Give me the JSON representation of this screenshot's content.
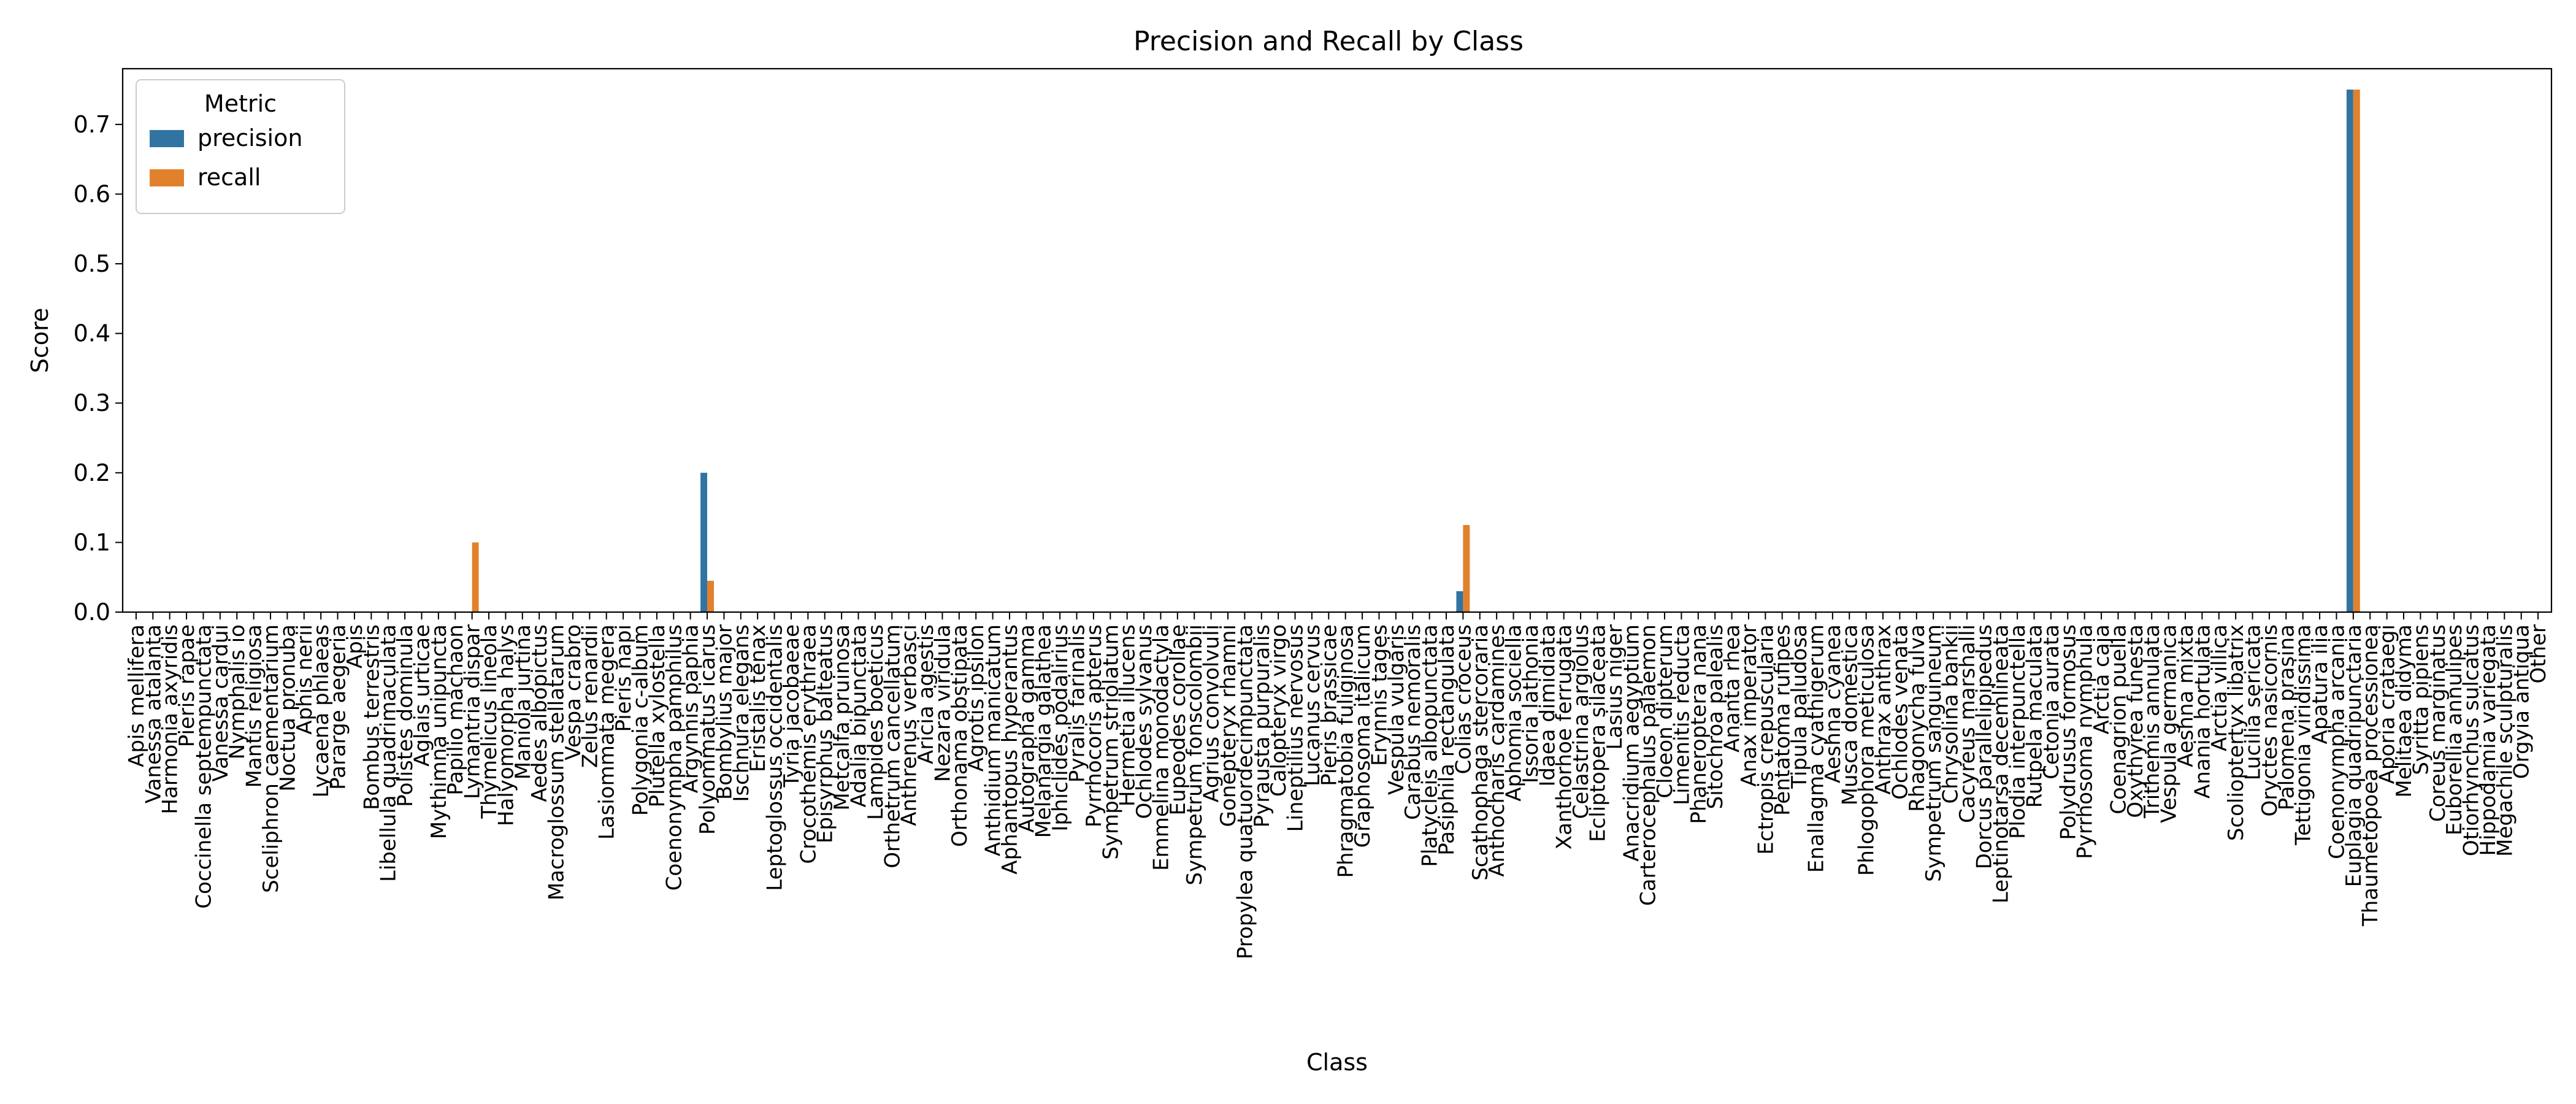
{
  "chart_data": {
    "type": "bar",
    "title": "Precision and Recall by Class",
    "xlabel": "Class",
    "ylabel": "Score",
    "ylim": [
      0,
      0.78
    ],
    "yticks": [
      0.0,
      0.1,
      0.2,
      0.3,
      0.4,
      0.5,
      0.6,
      0.7
    ],
    "legend": {
      "title": "Metric",
      "placement": "top-left"
    },
    "colors": {
      "precision": "#3274a1",
      "recall": "#e1812c"
    },
    "categories": [
      "Apis mellifera",
      "Vanessa atalanta",
      "Harmonia axyridis",
      "Pieris rapae",
      "Coccinella septempunctata",
      "Vanessa cardui",
      "Nymphalis io",
      "Mantis religiosa",
      "Sceliphron caementarium",
      "Noctua pronuba",
      "Aphis nerii",
      "Lycaena phlaeas",
      "Pararge aegeria",
      "Apis",
      "Bombus terrestris",
      "Libellula quadrimaculata",
      "Polistes dominula",
      "Aglais urticae",
      "Mythimna unipuncta",
      "Papilio machaon",
      "Lymantria dispar",
      "Thymelicus lineola",
      "Halyomorpha halys",
      "Maniola jurtina",
      "Aedes albopictus",
      "Macroglossum stellatarum",
      "Vespa crabro",
      "Zelus renardii",
      "Lasiommata megera",
      "Pieris napi",
      "Polygonia c-album",
      "Plutella xylostella",
      "Coenonympha pamphilus",
      "Argynnis paphia",
      "Polyommatus icarus",
      "Bombylius major",
      "Ischnura elegans",
      "Eristalis tenax",
      "Leptoglossus occidentalis",
      "Tyria jacobaeae",
      "Crocothemis erythraea",
      "Episyrphus balteatus",
      "Metcalfa pruinosa",
      "Adalia bipunctata",
      "Lampides boeticus",
      "Orthetrum cancellatum",
      "Anthrenus verbasci",
      "Aricia agestis",
      "Nezara viridula",
      "Orthonama obstipata",
      "Agrotis ipsilon",
      "Anthidium manicatum",
      "Aphantopus hyperantus",
      "Autographa gamma",
      "Melanargia galathea",
      "Iphiclides podalirius",
      "Pyralis farinalis",
      "Pyrrhocoris apterus",
      "Sympetrum striolatum",
      "Hermetia illucens",
      "Ochlodes sylvanus",
      "Emmelina monodactyla",
      "Eupeodes corollae",
      "Sympetrum fonscolombii",
      "Agrius convolvuli",
      "Gonepteryx rhamni",
      "Propylea quatuordecimpunctata",
      "Pyrausta purpuralis",
      "Calopteryx virgo",
      "Lineptilius nervosus",
      "Lucanus cervus",
      "Pieris brassicae",
      "Phragmatobia fuliginosa",
      "Graphosoma italicum",
      "Erynnis tages",
      "Vespula vulgaris",
      "Carabus nemoralis",
      "Platycleis albopunctata",
      "Pasiphila rectangulata",
      "Colias croceus",
      "Scathophaga stercoraria",
      "Anthocharis cardamines",
      "Aphomia sociella",
      "Issoria lathonia",
      "Idaea dimidiata",
      "Xanthorhoe ferrugata",
      "Celastrina argiolus",
      "Ecliptopera silaceata",
      "Lasius niger",
      "Anacridium aegyptium",
      "Carterocephalus palaemon",
      "Cloeon dipterum",
      "Limenitis reducta",
      "Phaneroptera nana",
      "Sitochroa palealis",
      "Ananta rhea",
      "Anax imperator",
      "Ectropis crepuscularia",
      "Pentatoma rufipes",
      "Tipula paludosa",
      "Enallagma cyathigerum",
      "Aeshna cyanea",
      "Musca domestica",
      "Phlogophora meticulosa",
      "Anthrax anthrax",
      "Ochlodes venata",
      "Rhagonycha fulva",
      "Sympetrum sanguineum",
      "Chrysolina bankii",
      "Cacyreus marshalli",
      "Dorcus parallelipipedus",
      "Leptinotarsa decemlineata",
      "Plodia interpunctella",
      "Rutpela maculata",
      "Cetonia aurata",
      "Polydrusus formosus",
      "Pyrrhosoma nymphula",
      "Arctia caja",
      "Coenagrion puella",
      "Oxythyrea funesta",
      "Trithemis annulata",
      "Vespula germanica",
      "Aeshna mixta",
      "Anania hortulata",
      "Arctia villica",
      "Scolioptertyx libatrix",
      "Lucilia sericata",
      "Oryctes nasicornis",
      "Palomena prasina",
      "Tettigonia viridissima",
      "Apatura ilia",
      "Coenonympha arcania",
      "Euplagia quadripunctaria",
      "Thaumetopoea processionea",
      "Aporia crataegi",
      "Melitaea didyma",
      "Syritta pipiens",
      "Coreus marginatus",
      "Euborellia annulipes",
      "Otiorhynchus sulcatus",
      "Hippodamia variegata",
      "Megachile sculpturalis",
      "Orgyia antiqua",
      "Other"
    ],
    "series": [
      {
        "name": "precision",
        "values": {
          "Polyommatus icarus": 0.2,
          "Colias croceus": 0.03,
          "Euplagia quadripunctaria": 0.75
        }
      },
      {
        "name": "recall",
        "values": {
          "Lymantria dispar": 0.1,
          "Polyommatus icarus": 0.045,
          "Colias croceus": 0.125,
          "Euplagia quadripunctaria": 0.75
        }
      }
    ]
  }
}
